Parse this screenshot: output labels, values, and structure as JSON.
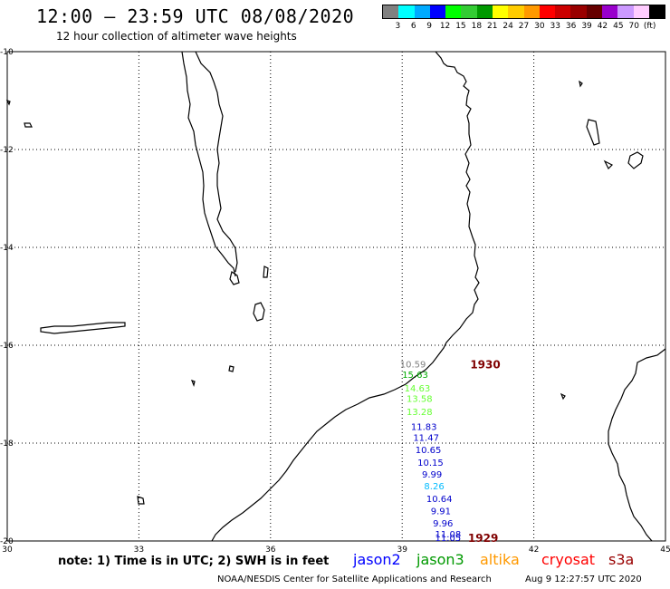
{
  "header": {
    "title": "12:00 – 23:59 UTC 08/08/2020",
    "subtitle": "12 hour collection of altimeter wave heights"
  },
  "legend": {
    "colors": [
      "#808080",
      "#00ffff",
      "#00aaff",
      "#0000ff",
      "#00ff00",
      "#33cc33",
      "#009900",
      "#ffff00",
      "#ffcc00",
      "#ff9900",
      "#ff0000",
      "#cc0000",
      "#990000",
      "#660000",
      "#9900cc",
      "#cc99ff",
      "#ffccff",
      "#000000"
    ],
    "labels": [
      "3",
      "6",
      "9",
      "12",
      "15",
      "18",
      "21",
      "24",
      "27",
      "30",
      "33",
      "36",
      "39",
      "42",
      "45",
      "70",
      "(ft)"
    ]
  },
  "map": {
    "lat_range": [
      -20,
      -10
    ],
    "lon_range": [
      30,
      45
    ],
    "lat_labels": [
      "-10",
      "-12",
      "-14",
      "-16",
      "-18",
      "-20"
    ],
    "lon_labels": [
      "30",
      "33",
      "36",
      "39",
      "42",
      "45"
    ],
    "observations": [
      {
        "value": "10.59",
        "color": "#808080",
        "lat": -16.38,
        "lon": 38.95
      },
      {
        "value": "15.63",
        "color": "#00aa00",
        "lat": -16.59,
        "lon": 39.0
      },
      {
        "value": "14.63",
        "color": "#66ff33",
        "lat": -16.87,
        "lon": 39.05
      },
      {
        "value": "13.58",
        "color": "#66ff33",
        "lat": -17.08,
        "lon": 39.1
      },
      {
        "value": "13.28",
        "color": "#66ff33",
        "lat": -17.35,
        "lon": 39.1
      },
      {
        "value": "11.83",
        "color": "#0000cc",
        "lat": -17.66,
        "lon": 39.2
      },
      {
        "value": "11.47",
        "color": "#0000cc",
        "lat": -17.88,
        "lon": 39.25
      },
      {
        "value": "10.65",
        "color": "#0000cc",
        "lat": -18.13,
        "lon": 39.3
      },
      {
        "value": "10.15",
        "color": "#0000cc",
        "lat": -18.39,
        "lon": 39.35
      },
      {
        "value": "9.99",
        "color": "#0000cc",
        "lat": -18.63,
        "lon": 39.45
      },
      {
        "value": "8.26",
        "color": "#00bbff",
        "lat": -18.87,
        "lon": 39.5
      },
      {
        "value": "10.64",
        "color": "#0000cc",
        "lat": -19.13,
        "lon": 39.55
      },
      {
        "value": "9.91",
        "color": "#0000cc",
        "lat": -19.38,
        "lon": 39.65
      },
      {
        "value": "9.96",
        "color": "#0000cc",
        "lat": -19.63,
        "lon": 39.7
      },
      {
        "value": "11.08",
        "color": "#0000cc",
        "lat": -19.85,
        "lon": 39.75
      },
      {
        "value": "11.05",
        "color": "#0000cc",
        "lat": -19.93,
        "lon": 39.75
      }
    ],
    "rev_labels": [
      {
        "text": "1930",
        "color": "#800000",
        "lat": -16.38,
        "lon": 40.55
      },
      {
        "text": "1929",
        "color": "#800000",
        "lat": -19.93,
        "lon": 40.5
      }
    ]
  },
  "note": "note:  1) Time is in UTC; 2) SWH is in feet",
  "satellites": [
    {
      "name": "jason2",
      "color": "#0000ff"
    },
    {
      "name": "jason3",
      "color": "#009900"
    },
    {
      "name": "altika",
      "color": "#ff9900"
    },
    {
      "name": "cryosat",
      "color": "#ff0000"
    },
    {
      "name": "s3a",
      "color": "#990000"
    }
  ],
  "footer": {
    "credit": "NOAA/NESDIS Center for Satellite Applications and Research",
    "timestamp": "Aug  9 12:27:57 UTC 2020"
  }
}
